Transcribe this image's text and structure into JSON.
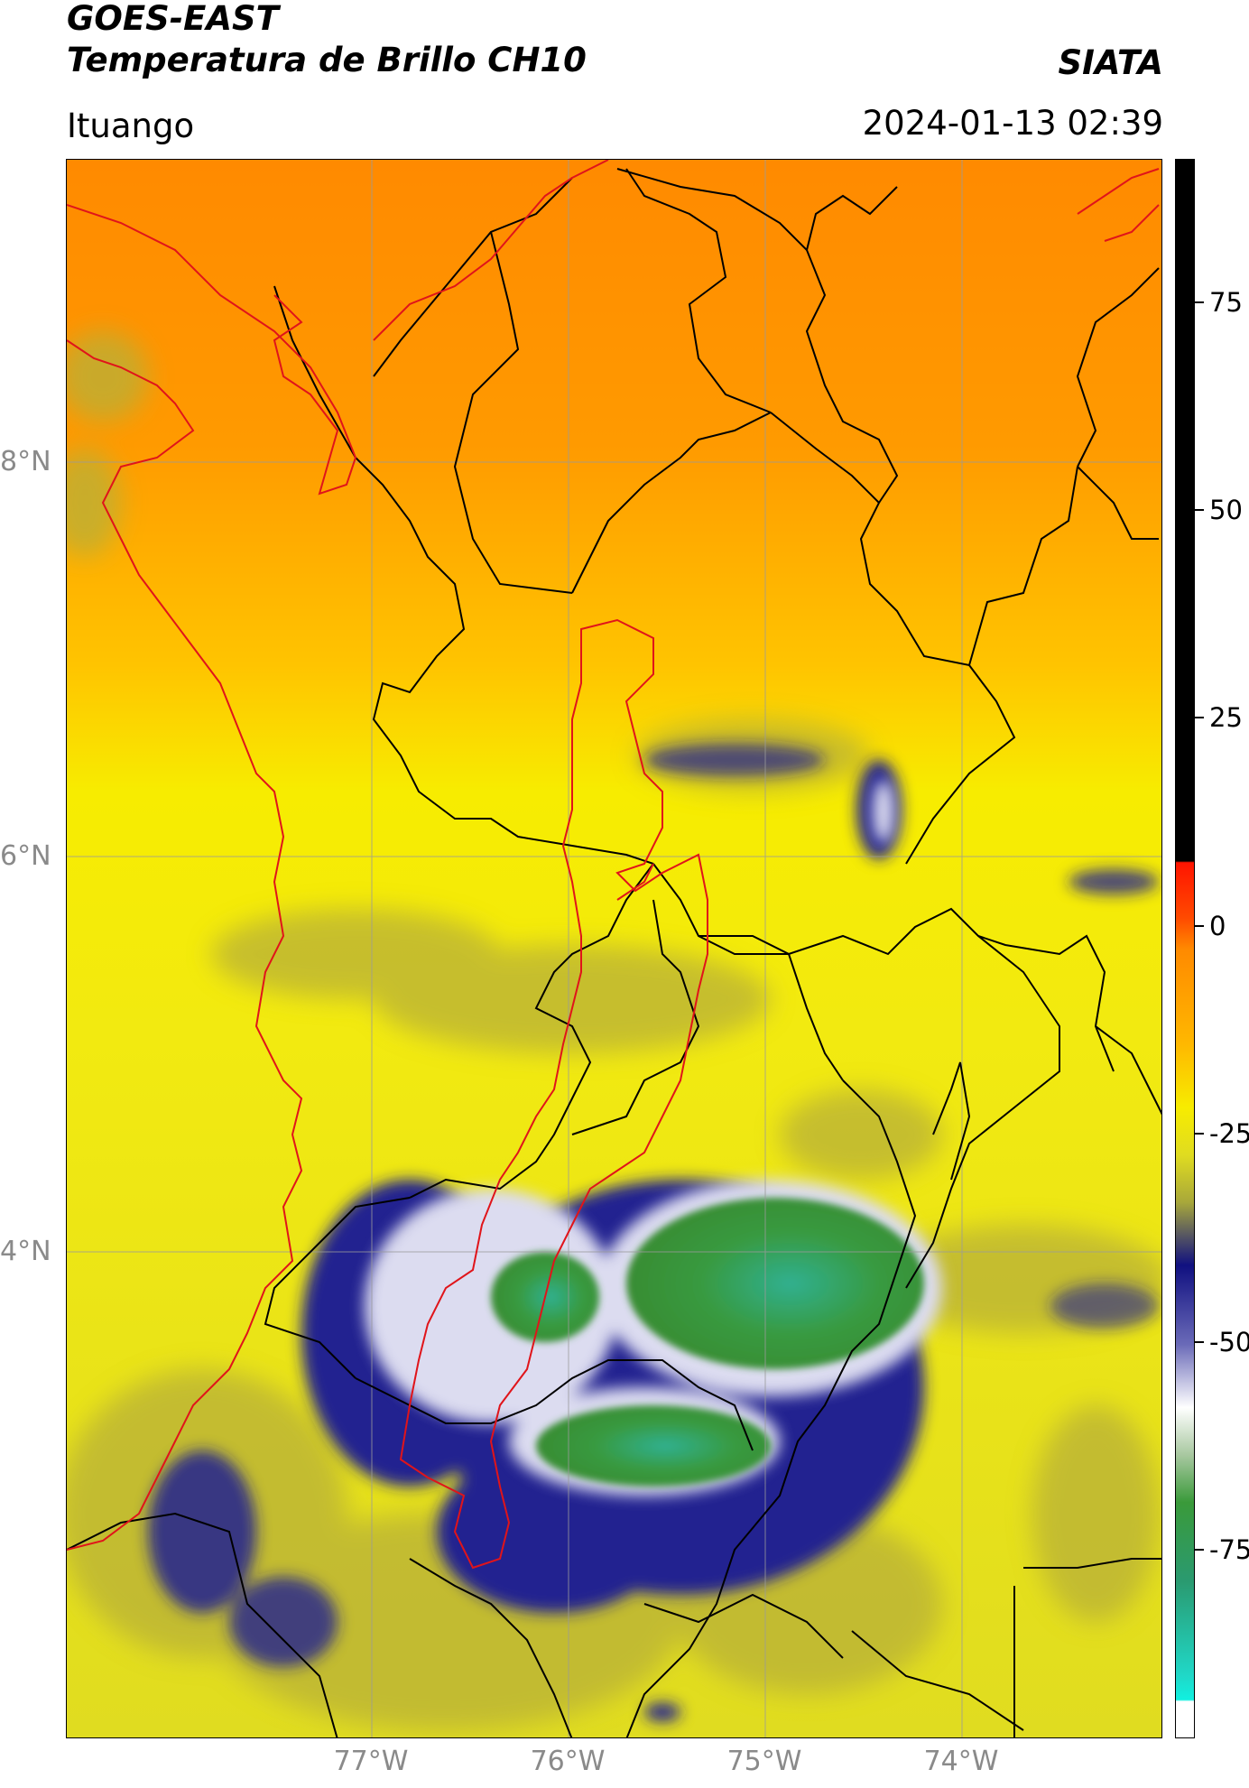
{
  "header": {
    "title_line1": "GOES-EAST",
    "title_line2": "Temperatura de Brillo CH10",
    "organization": "SIATA",
    "location": "Ituango",
    "timestamp": "2024-01-13 02:39"
  },
  "map": {
    "lat_labels": [
      "8°N",
      "6°N",
      "4°N"
    ],
    "lon_labels": [
      "77°W",
      "76°W",
      "75°W",
      "74°W"
    ],
    "grid": true,
    "border_color_region": "#e0141a",
    "border_color_political": "#000000"
  },
  "colorbar": {
    "ticks": [
      "75",
      "50",
      "25",
      "0",
      "-25",
      "-50",
      "-75"
    ],
    "range": [
      -95,
      90
    ],
    "colors": {
      "warm": "#ff8a00",
      "mid": "#f5ea00",
      "olive": "#a8a83a",
      "navy": "#1a1a8c",
      "white": "#ffffff",
      "green": "#3a9a3a",
      "cyan": "#20d8c8",
      "red": "#ff1400",
      "black": "#000000"
    }
  }
}
